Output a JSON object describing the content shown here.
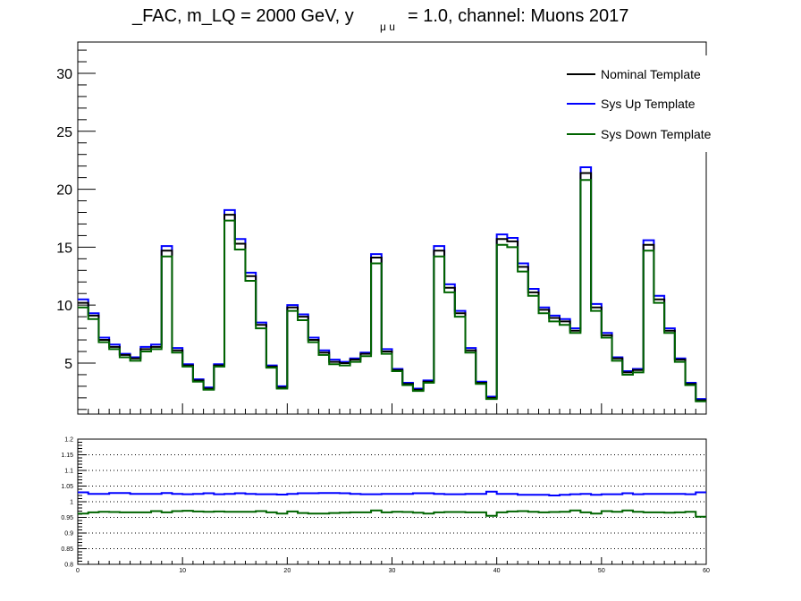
{
  "title": {
    "prefix": "_FAC, m_LQ = 2000 GeV, y",
    "subscript": "μ u",
    "suffix": "= 1.0, channel: Muons 2017"
  },
  "legend": [
    {
      "label": "Nominal Template",
      "color": "#000000"
    },
    {
      "label": "Sys Up Template",
      "color": "#0000ff"
    },
    {
      "label": "Sys Down Template",
      "color": "#006400"
    }
  ],
  "chart_data": [
    {
      "type": "line",
      "style": "step-histogram",
      "bins": 60,
      "xlim": [
        0,
        60
      ],
      "ylim": [
        0.6,
        32.7
      ],
      "yticks": [
        "5",
        "10",
        "15",
        "20",
        "25",
        "30"
      ],
      "series": [
        {
          "name": "Nominal Template",
          "color": "#000000",
          "values": [
            10.2,
            9.1,
            7.0,
            6.4,
            5.7,
            5.4,
            6.2,
            6.4,
            14.7,
            6.1,
            4.8,
            3.5,
            2.8,
            4.8,
            17.8,
            15.3,
            12.5,
            8.3,
            4.7,
            2.9,
            9.8,
            9.0,
            7.0,
            5.9,
            5.1,
            5.0,
            5.3,
            5.8,
            14.1,
            6.0,
            4.4,
            3.2,
            2.7,
            3.4,
            14.7,
            11.5,
            9.3,
            6.1,
            3.3,
            2.0,
            15.7,
            15.5,
            13.3,
            11.1,
            9.6,
            8.9,
            8.6,
            7.8,
            21.4,
            9.8,
            7.4,
            5.4,
            4.2,
            4.4,
            15.2,
            10.5,
            7.8,
            5.3,
            3.2,
            1.8
          ]
        },
        {
          "name": "Sys Up Template",
          "color": "#0000ff",
          "values": [
            10.5,
            9.3,
            7.2,
            6.6,
            5.8,
            5.5,
            6.4,
            6.6,
            15.1,
            6.3,
            4.9,
            3.6,
            2.9,
            4.9,
            18.2,
            15.7,
            12.8,
            8.5,
            4.8,
            3.0,
            10.0,
            9.2,
            7.2,
            6.1,
            5.3,
            5.1,
            5.4,
            5.9,
            14.4,
            6.2,
            4.5,
            3.3,
            2.8,
            3.5,
            15.1,
            11.8,
            9.5,
            6.3,
            3.4,
            2.1,
            16.1,
            15.8,
            13.6,
            11.4,
            9.8,
            9.1,
            8.8,
            8.0,
            21.9,
            10.1,
            7.6,
            5.5,
            4.3,
            4.5,
            15.6,
            10.8,
            8.0,
            5.4,
            3.3,
            1.9
          ]
        },
        {
          "name": "Sys Down Template",
          "color": "#006400",
          "values": [
            9.8,
            8.8,
            6.8,
            6.2,
            5.5,
            5.2,
            6.0,
            6.2,
            14.2,
            5.9,
            4.7,
            3.4,
            2.7,
            4.7,
            17.3,
            14.8,
            12.1,
            8.0,
            4.6,
            2.8,
            9.5,
            8.7,
            6.8,
            5.7,
            4.9,
            4.8,
            5.1,
            5.6,
            13.6,
            5.8,
            4.3,
            3.1,
            2.6,
            3.3,
            14.2,
            11.1,
            9.0,
            5.9,
            3.2,
            1.9,
            15.2,
            15.0,
            12.9,
            10.8,
            9.3,
            8.6,
            8.3,
            7.6,
            20.8,
            9.5,
            7.2,
            5.2,
            4.0,
            4.2,
            14.7,
            10.2,
            7.6,
            5.1,
            3.1,
            1.7
          ]
        }
      ]
    },
    {
      "type": "line",
      "style": "step-ratio",
      "bins": 60,
      "xlim": [
        0,
        60
      ],
      "ylim": [
        0.8,
        1.2
      ],
      "xticks": [
        "0",
        "10",
        "20",
        "30",
        "40",
        "50",
        "60"
      ],
      "yticks": [
        "0.8",
        "0.85",
        "0.9",
        "0.95",
        "1",
        "1.05",
        "1.1",
        "1.15",
        "1.2"
      ],
      "grid": "horizontal dotted",
      "series": [
        {
          "name": "Sys Up Template",
          "color": "#0000ff",
          "values": [
            1.03,
            1.025,
            1.025,
            1.028,
            1.028,
            1.025,
            1.025,
            1.025,
            1.028,
            1.025,
            1.024,
            1.025,
            1.027,
            1.024,
            1.025,
            1.027,
            1.025,
            1.024,
            1.024,
            1.023,
            1.025,
            1.027,
            1.027,
            1.028,
            1.028,
            1.027,
            1.025,
            1.024,
            1.024,
            1.025,
            1.025,
            1.025,
            1.027,
            1.027,
            1.025,
            1.024,
            1.024,
            1.025,
            1.025,
            1.032,
            1.025,
            1.025,
            1.022,
            1.022,
            1.022,
            1.02,
            1.022,
            1.024,
            1.025,
            1.022,
            1.024,
            1.024,
            1.027,
            1.024,
            1.025,
            1.025,
            1.025,
            1.025,
            1.024,
            1.03
          ]
        },
        {
          "name": "Sys Down Template",
          "color": "#006400",
          "values": [
            0.962,
            0.966,
            0.968,
            0.967,
            0.966,
            0.966,
            0.966,
            0.97,
            0.966,
            0.97,
            0.971,
            0.969,
            0.968,
            0.969,
            0.968,
            0.968,
            0.968,
            0.97,
            0.966,
            0.962,
            0.969,
            0.964,
            0.962,
            0.962,
            0.964,
            0.965,
            0.966,
            0.966,
            0.972,
            0.966,
            0.968,
            0.967,
            0.965,
            0.962,
            0.966,
            0.967,
            0.967,
            0.966,
            0.966,
            0.955,
            0.966,
            0.969,
            0.97,
            0.968,
            0.966,
            0.967,
            0.968,
            0.972,
            0.966,
            0.962,
            0.97,
            0.968,
            0.972,
            0.968,
            0.966,
            0.966,
            0.965,
            0.966,
            0.968,
            0.952
          ]
        }
      ]
    }
  ]
}
